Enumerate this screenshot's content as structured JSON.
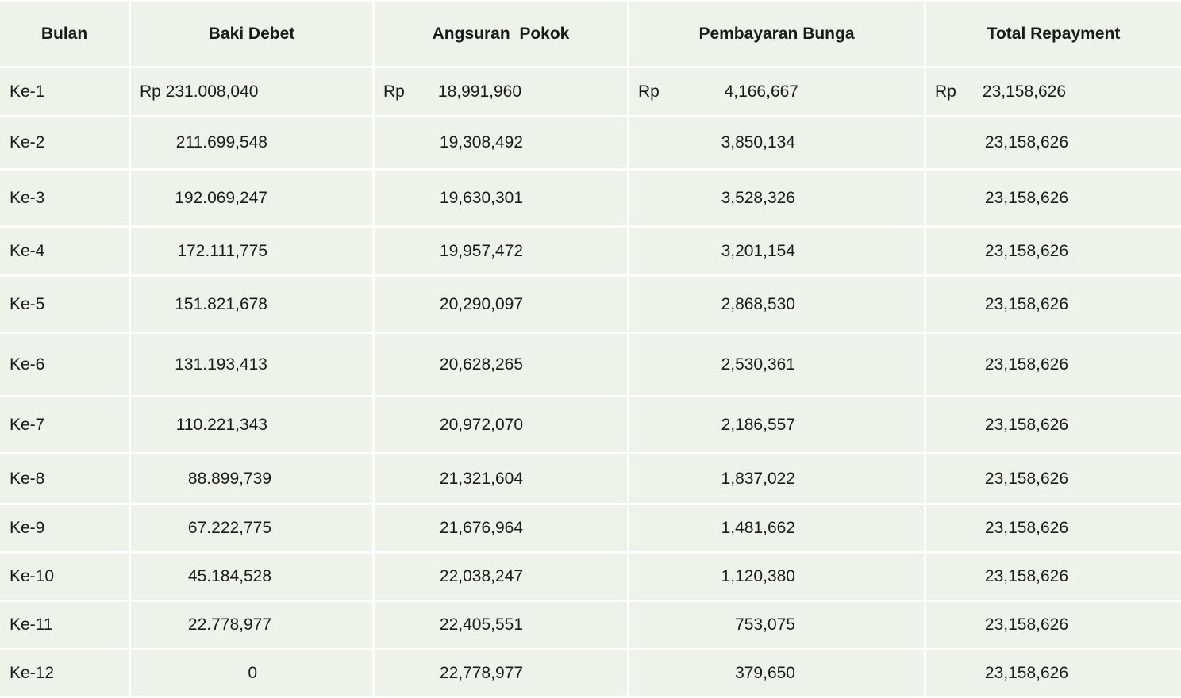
{
  "headers": {
    "bulan": "Bulan",
    "baki_debet": "Baki Debet",
    "angsuran_pokok": "Angsuran  Pokok",
    "pembayaran_bunga": "Pembayaran Bunga",
    "total_repayment": "Total Repayment"
  },
  "currency": "Rp",
  "rows": [
    {
      "bulan": "Ke-1",
      "baki": "Rp 231.008,040",
      "pokok": "18,991,960",
      "bunga": "4,166,667",
      "total": "23,158,626"
    },
    {
      "bulan": "Ke-2",
      "baki": "211.699,548",
      "pokok": "19,308,492",
      "bunga": "3,850,134",
      "total": "23,158,626"
    },
    {
      "bulan": "Ke-3",
      "baki": "192.069,247",
      "pokok": "19,630,301",
      "bunga": "3,528,326",
      "total": "23,158,626"
    },
    {
      "bulan": "Ke-4",
      "baki": "172.111,775",
      "pokok": "19,957,472",
      "bunga": "3,201,154",
      "total": "23,158,626"
    },
    {
      "bulan": "Ke-5",
      "baki": "151.821,678",
      "pokok": "20,290,097",
      "bunga": "2,868,530",
      "total": "23,158,626"
    },
    {
      "bulan": "Ke-6",
      "baki": "131.193,413",
      "pokok": "20,628,265",
      "bunga": "2,530,361",
      "total": "23,158,626"
    },
    {
      "bulan": "Ke-7",
      "baki": "110.221,343",
      "pokok": "20,972,070",
      "bunga": "2,186,557",
      "total": "23,158,626"
    },
    {
      "bulan": "Ke-8",
      "baki": "88.899,739",
      "pokok": "21,321,604",
      "bunga": "1,837,022",
      "total": "23,158,626"
    },
    {
      "bulan": "Ke-9",
      "baki": "67.222,775",
      "pokok": "21,676,964",
      "bunga": "1,481,662",
      "total": "23,158,626"
    },
    {
      "bulan": "Ke-10",
      "baki": "45.184,528",
      "pokok": "22,038,247",
      "bunga": "1,120,380",
      "total": "23,158,626"
    },
    {
      "bulan": "Ke-11",
      "baki": "22.778,977",
      "pokok": "22,405,551",
      "bunga": "753,075",
      "total": "23,158,626"
    },
    {
      "bulan": "Ke-12",
      "baki": "0",
      "pokok": "22,778,977",
      "bunga": "379,650",
      "total": "23,158,626"
    }
  ]
}
